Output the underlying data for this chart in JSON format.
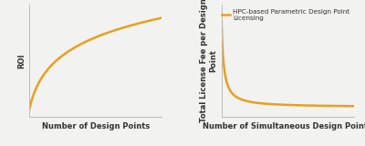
{
  "left_xlabel": "Number of Design Points",
  "left_ylabel": "ROI",
  "right_xlabel": "Number of Simultaneous Design Points",
  "right_ylabel": "Total License Fee per Design\nPoint",
  "legend_label": "HPC-based Parametric Design Point\nLicensing",
  "line_color": "#E8A020",
  "line_width": 1.8,
  "background_color": "#F2F2F0",
  "axes_background": "#F2F2F0",
  "label_fontsize": 6.0,
  "legend_fontsize": 5.2,
  "grid_color": "#DCDCDC",
  "spine_color": "#BBBBBB",
  "text_color": "#333333"
}
